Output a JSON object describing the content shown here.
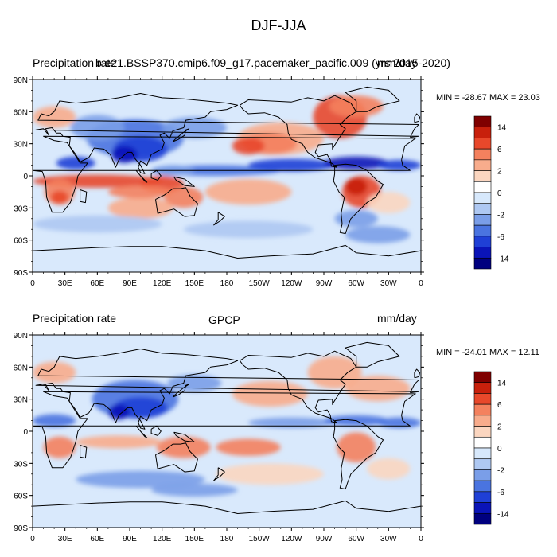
{
  "title": "DJF-JJA",
  "panels": [
    {
      "name": "model",
      "left_label": "Precipitation rate",
      "center_label": "b.e21.BSSP370.cmip6.f09_g17.pacemaker_pacific.009 (yrs 2015-2020)",
      "right_label": "mm/day",
      "min_max": "MIN = -28.67 MAX =  23.03"
    },
    {
      "name": "obs",
      "left_label": "Precipitation rate",
      "center_label": "GPCP",
      "right_label": "mm/day",
      "min_max": "MIN = -24.01 MAX =  12.11"
    }
  ],
  "lat_ticks": [
    "90N",
    "60N",
    "30N",
    "0",
    "30S",
    "60S",
    "90S"
  ],
  "lon_ticks": [
    "0",
    "30E",
    "60E",
    "90E",
    "120E",
    "150E",
    "180",
    "150W",
    "120W",
    "90W",
    "60W",
    "30W",
    "0"
  ],
  "colorbar": {
    "labels": [
      "14",
      "6",
      "2",
      "0",
      "-2",
      "-6",
      "-14"
    ],
    "colors": [
      "#7f0000",
      "#c8200c",
      "#e8482b",
      "#f4815e",
      "#f8ac8c",
      "#fbd6c0",
      "#ffffff",
      "#d7e8fb",
      "#aec8f2",
      "#7a9ee8",
      "#4a74e0",
      "#1f40d6",
      "#0a14b8",
      "#00007f"
    ]
  },
  "colors": {
    "land_outline": "#000000",
    "ocean_bg": "#d9e9fc"
  }
}
